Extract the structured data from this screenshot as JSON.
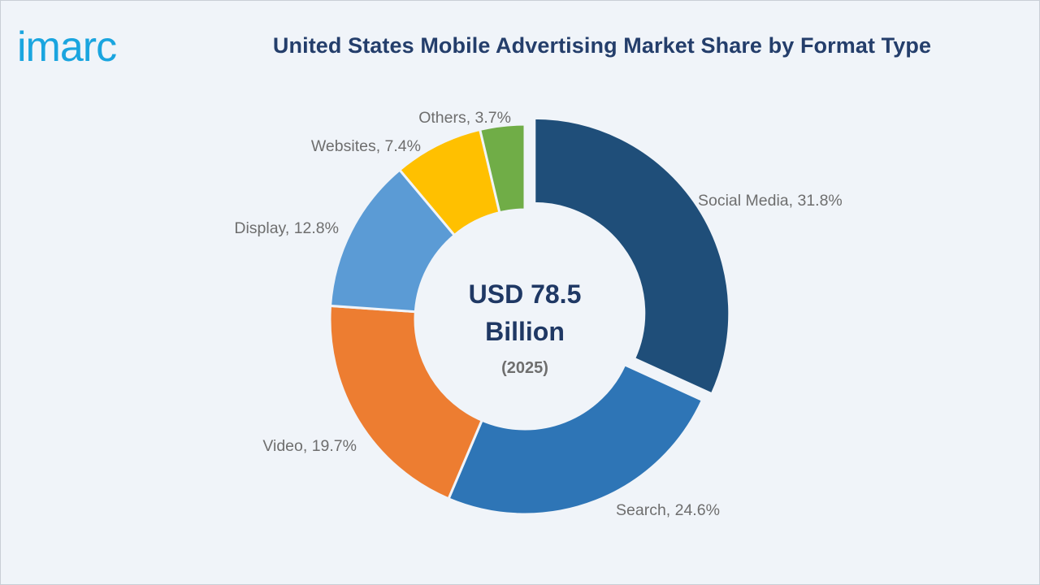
{
  "brand": {
    "logo_text": "imarc",
    "logo_color": "#1aa5df"
  },
  "chart_data": {
    "type": "pie",
    "variant": "donut",
    "title": "United States Mobile Advertising Market Share by Format Type",
    "center_value_line1": "USD 78.5",
    "center_value_line2": "Billion",
    "center_year": "(2025)",
    "slices": [
      {
        "name": "Social Media",
        "value": 31.8,
        "label": "Social Media, 31.8%",
        "color": "#1f4e79",
        "exploded": true
      },
      {
        "name": "Search",
        "value": 24.6,
        "label": "Search, 24.6%",
        "color": "#2e75b6",
        "exploded": false
      },
      {
        "name": "Video",
        "value": 19.7,
        "label": "Video, 19.7%",
        "color": "#ed7d31",
        "exploded": false
      },
      {
        "name": "Display",
        "value": 12.8,
        "label": "Display, 12.8%",
        "color": "#5b9bd5",
        "exploded": false
      },
      {
        "name": "Websites",
        "value": 7.4,
        "label": "Websites, 7.4%",
        "color": "#ffc000",
        "exploded": false
      },
      {
        "name": "Others",
        "value": 3.7,
        "label": "Others, 3.7%",
        "color": "#70ad47",
        "exploded": false
      }
    ],
    "legend": "none",
    "start_angle": "12 o'clock, clockwise"
  }
}
